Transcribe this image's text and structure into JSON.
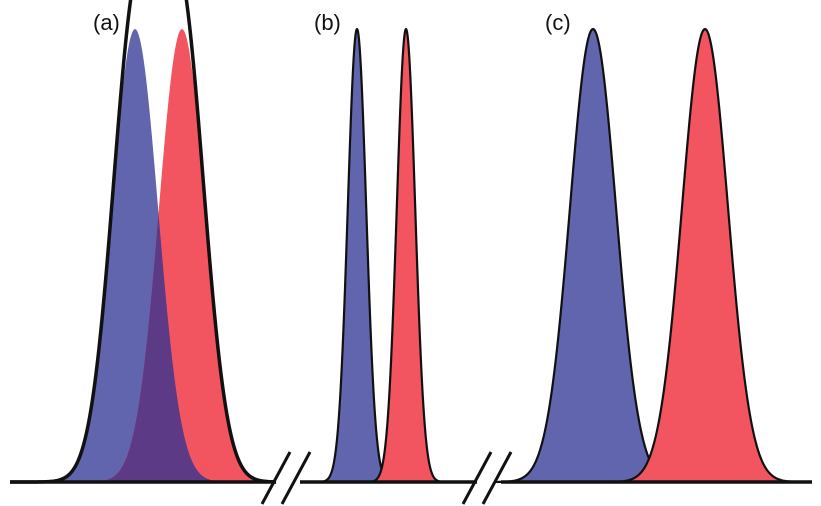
{
  "panels": [
    {
      "label": "(a)",
      "peaks": [
        {
          "color": "#6165ae",
          "height": 1.0,
          "width": 1.0
        },
        {
          "color": "#f2555f",
          "height": 1.0,
          "width": 1.0
        }
      ],
      "overlap_color": "#5c3a86"
    },
    {
      "label": "(b)",
      "peaks": [
        {
          "color": "#6165ae",
          "height": 1.0,
          "width": 0.4
        },
        {
          "color": "#f2555f",
          "height": 1.0,
          "width": 0.4
        }
      ]
    },
    {
      "label": "(c)",
      "peaks": [
        {
          "color": "#6165ae",
          "height": 1.0,
          "width": 1.0
        },
        {
          "color": "#f2555f",
          "height": 1.0,
          "width": 1.0
        }
      ]
    }
  ],
  "axis_breaks": 2,
  "colors": {
    "outline": "#111111",
    "blue": "#6165ae",
    "red": "#f2555f",
    "overlap": "#5c3a86"
  }
}
